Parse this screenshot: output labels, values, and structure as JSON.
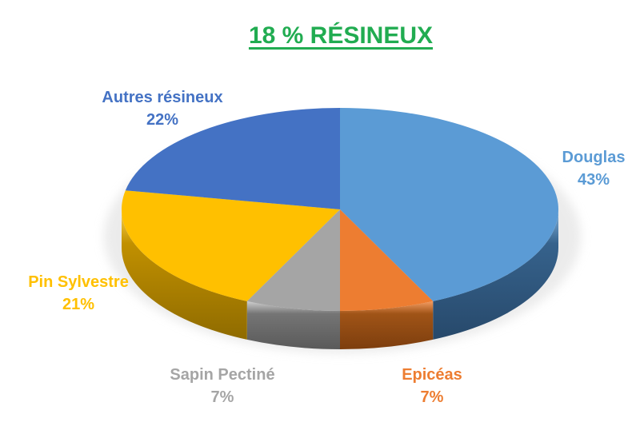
{
  "page": {
    "background": "#FFFFFF"
  },
  "title": {
    "text": "18 % RÉSINEUX",
    "color": "#21AC51",
    "underline": true
  },
  "chart_data": {
    "type": "pie",
    "style": "3d-pie",
    "title": "18 % RÉSINEUX",
    "start_angle_deg": 0,
    "direction": "clockwise",
    "legend": "none",
    "label_style": "outside category name + percentage, colored to match slice",
    "slices": [
      {
        "label": "Douglas",
        "value": 43,
        "pct_label": "43%",
        "color": "#5B9BD5",
        "side_color": "#36628C",
        "shade_color": "#27496B",
        "rim_color": "#85B6E2"
      },
      {
        "label": "Epicéas",
        "value": 7,
        "pct_label": "7%",
        "color": "#ED7D31",
        "side_color": "#A05417",
        "shade_color": "#7D3E0E",
        "rim_color": "#F49C61"
      },
      {
        "label": "Sapin Pectiné",
        "value": 7,
        "pct_label": "7%",
        "color": "#A5A5A5",
        "side_color": "#757575",
        "shade_color": "#5A5A5A",
        "rim_color": "#CFCFCF"
      },
      {
        "label": "Pin Sylvestre",
        "value": 21,
        "pct_label": "21%",
        "color": "#FFC000",
        "side_color": "#C19000",
        "shade_color": "#8F6B00",
        "rim_color": "#FFD64F"
      },
      {
        "label": "Autres résineux",
        "value": 22,
        "pct_label": "22%",
        "color": "#4472C4",
        "side_color": "#2E4E86",
        "shade_color": "#253F6B",
        "rim_color": "#6E93D6"
      }
    ]
  }
}
